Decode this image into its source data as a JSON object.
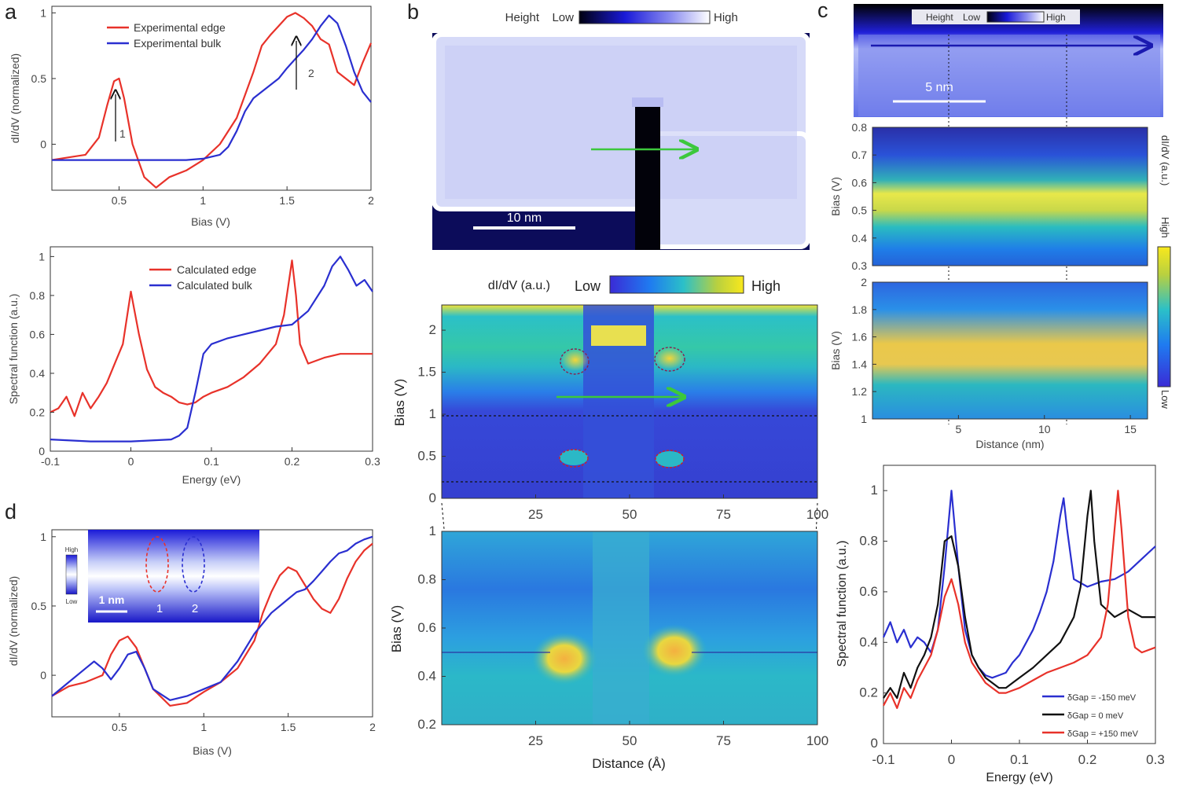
{
  "panels": {
    "a": "a",
    "b": "b",
    "c": "c",
    "d": "d"
  },
  "colors": {
    "edge": "#e8322a",
    "bulk": "#2a2fd0",
    "black": "#111111",
    "arrow": "#3cc83c"
  },
  "chart_data": [
    {
      "id": "a-top",
      "type": "line",
      "xlabel": "Bias (V)",
      "ylabel": "dI/dV (normalized)",
      "xlim": [
        0.1,
        2.0
      ],
      "ylim": [
        -0.35,
        1.05
      ],
      "xticks": [
        "0.5",
        "1",
        "1.5",
        "2"
      ],
      "yticks": [
        "0",
        "0.5",
        "1"
      ],
      "legend": "top-left",
      "annotations": [
        "1",
        "2"
      ],
      "series": [
        {
          "name": "Experimental edge",
          "color": "#e8322a",
          "x": [
            0.1,
            0.2,
            0.3,
            0.38,
            0.43,
            0.47,
            0.5,
            0.53,
            0.58,
            0.65,
            0.72,
            0.8,
            0.9,
            1.0,
            1.1,
            1.2,
            1.3,
            1.35,
            1.4,
            1.45,
            1.5,
            1.55,
            1.6,
            1.65,
            1.7,
            1.75,
            1.8,
            1.85,
            1.9,
            1.95,
            2.0
          ],
          "y": [
            -0.12,
            -0.1,
            -0.08,
            0.05,
            0.3,
            0.48,
            0.5,
            0.35,
            0.0,
            -0.25,
            -0.33,
            -0.25,
            -0.2,
            -0.12,
            0.0,
            0.2,
            0.55,
            0.75,
            0.83,
            0.9,
            0.97,
            1.0,
            0.96,
            0.9,
            0.8,
            0.76,
            0.55,
            0.5,
            0.45,
            0.62,
            0.77
          ]
        },
        {
          "name": "Experimental bulk",
          "color": "#2a2fd0",
          "x": [
            0.1,
            0.3,
            0.5,
            0.7,
            0.9,
            1.0,
            1.1,
            1.15,
            1.2,
            1.25,
            1.3,
            1.35,
            1.4,
            1.45,
            1.5,
            1.55,
            1.6,
            1.65,
            1.7,
            1.75,
            1.8,
            1.85,
            1.9,
            1.95,
            2.0
          ],
          "y": [
            -0.12,
            -0.12,
            -0.12,
            -0.12,
            -0.12,
            -0.11,
            -0.08,
            -0.02,
            0.1,
            0.25,
            0.35,
            0.4,
            0.45,
            0.5,
            0.58,
            0.65,
            0.72,
            0.8,
            0.9,
            0.98,
            0.92,
            0.75,
            0.55,
            0.4,
            0.32
          ]
        }
      ]
    },
    {
      "id": "a-bottom",
      "type": "line",
      "xlabel": "Energy (eV)",
      "ylabel": "Spectral function (a.u.)",
      "xlim": [
        -0.1,
        0.3
      ],
      "ylim": [
        0,
        1.05
      ],
      "xticks": [
        "-0.1",
        "0",
        "0.1",
        "0.2",
        "0.3"
      ],
      "yticks": [
        "0",
        "0.2",
        "0.4",
        "0.6",
        "0.8",
        "1"
      ],
      "legend": "top-left",
      "series": [
        {
          "name": "Calculated edge",
          "color": "#e8322a",
          "x": [
            -0.1,
            -0.09,
            -0.08,
            -0.07,
            -0.06,
            -0.05,
            -0.04,
            -0.03,
            -0.02,
            -0.01,
            0.0,
            0.01,
            0.02,
            0.03,
            0.04,
            0.05,
            0.06,
            0.07,
            0.08,
            0.09,
            0.1,
            0.12,
            0.14,
            0.16,
            0.18,
            0.19,
            0.2,
            0.205,
            0.21,
            0.22,
            0.24,
            0.26,
            0.3
          ],
          "y": [
            0.2,
            0.22,
            0.28,
            0.18,
            0.3,
            0.22,
            0.28,
            0.35,
            0.45,
            0.55,
            0.82,
            0.6,
            0.42,
            0.33,
            0.3,
            0.28,
            0.25,
            0.24,
            0.25,
            0.28,
            0.3,
            0.33,
            0.38,
            0.45,
            0.55,
            0.7,
            0.98,
            0.8,
            0.55,
            0.45,
            0.48,
            0.5,
            0.5
          ]
        },
        {
          "name": "Calculated bulk",
          "color": "#2a2fd0",
          "x": [
            -0.1,
            -0.05,
            0.0,
            0.05,
            0.06,
            0.07,
            0.08,
            0.09,
            0.1,
            0.12,
            0.14,
            0.16,
            0.18,
            0.2,
            0.22,
            0.24,
            0.25,
            0.26,
            0.27,
            0.28,
            0.29,
            0.3
          ],
          "y": [
            0.06,
            0.05,
            0.05,
            0.06,
            0.08,
            0.12,
            0.3,
            0.5,
            0.55,
            0.58,
            0.6,
            0.62,
            0.64,
            0.65,
            0.72,
            0.85,
            0.95,
            1.0,
            0.93,
            0.85,
            0.88,
            0.82
          ]
        }
      ]
    },
    {
      "id": "b-topo",
      "type": "heatmap",
      "colorbar_label": "Height",
      "colorbar_low": "Low",
      "colorbar_high": "High",
      "scalebar": "10 nm"
    },
    {
      "id": "b-map-top",
      "type": "heatmap",
      "ylabel": "Bias (V)",
      "xlim": [
        0,
        100
      ],
      "ylim": [
        0,
        2.3
      ],
      "xticks": [
        "25",
        "50",
        "75",
        "100"
      ],
      "yticks": [
        "0",
        "0.5",
        "1",
        "1.5",
        "2"
      ],
      "colorbar_label": "dI/dV (a.u.)",
      "colorbar_low": "Low",
      "colorbar_high": "High"
    },
    {
      "id": "b-map-bottom",
      "type": "heatmap",
      "xlabel": "Distance (Å)",
      "ylabel": "Bias (V)",
      "xlim": [
        0,
        100
      ],
      "ylim": [
        0.2,
        1.0
      ],
      "xticks": [
        "25",
        "50",
        "75",
        "100"
      ],
      "yticks": [
        "0.2",
        "0.4",
        "0.6",
        "0.8",
        "1"
      ]
    },
    {
      "id": "c-topo",
      "type": "heatmap",
      "colorbar_label": "Height",
      "colorbar_low": "Low",
      "colorbar_high": "High",
      "scalebar": "5 nm"
    },
    {
      "id": "c-map-top",
      "type": "heatmap",
      "ylabel": "Bias (V)",
      "xlim": [
        0,
        16
      ],
      "ylim": [
        0.3,
        0.8
      ],
      "yticks": [
        "0.3",
        "0.4",
        "0.5",
        "0.6",
        "0.7",
        "0.8"
      ],
      "colorbar_label": "dI/dV (a.u.)",
      "colorbar_high": "High",
      "colorbar_low": "Low"
    },
    {
      "id": "c-map-bottom",
      "type": "heatmap",
      "xlabel": "Distance (nm)",
      "ylabel": "Bias (V)",
      "xlim": [
        0,
        16
      ],
      "ylim": [
        1.0,
        2.0
      ],
      "xticks": [
        "5",
        "10",
        "15"
      ],
      "yticks": [
        "1",
        "1.2",
        "1.4",
        "1.6",
        "1.8",
        "2"
      ]
    },
    {
      "id": "c-spectral",
      "type": "line",
      "xlabel": "Energy (eV)",
      "ylabel": "Spectral function (a.u.)",
      "xlim": [
        -0.1,
        0.3
      ],
      "ylim": [
        0,
        1.1
      ],
      "xticks": [
        "-0.1",
        "0",
        "0.1",
        "0.2",
        "0.3"
      ],
      "yticks": [
        "0",
        "0.2",
        "0.4",
        "0.6",
        "0.8",
        "1"
      ],
      "legend": "bottom-right",
      "series": [
        {
          "name": "δGap = -150 meV",
          "color": "#2a2fd0",
          "x": [
            -0.1,
            -0.09,
            -0.08,
            -0.07,
            -0.06,
            -0.05,
            -0.04,
            -0.03,
            -0.02,
            -0.01,
            0.0,
            0.01,
            0.02,
            0.03,
            0.04,
            0.05,
            0.06,
            0.07,
            0.08,
            0.09,
            0.1,
            0.11,
            0.12,
            0.13,
            0.14,
            0.15,
            0.16,
            0.165,
            0.17,
            0.18,
            0.2,
            0.22,
            0.24,
            0.26,
            0.28,
            0.3
          ],
          "y": [
            0.42,
            0.48,
            0.4,
            0.45,
            0.38,
            0.42,
            0.4,
            0.36,
            0.45,
            0.7,
            1.0,
            0.7,
            0.45,
            0.35,
            0.3,
            0.27,
            0.26,
            0.27,
            0.28,
            0.32,
            0.35,
            0.4,
            0.45,
            0.52,
            0.6,
            0.72,
            0.9,
            0.97,
            0.85,
            0.65,
            0.62,
            0.64,
            0.65,
            0.68,
            0.73,
            0.78
          ]
        },
        {
          "name": "δGap = 0 meV",
          "color": "#111111",
          "x": [
            -0.1,
            -0.09,
            -0.08,
            -0.07,
            -0.06,
            -0.05,
            -0.04,
            -0.03,
            -0.02,
            -0.01,
            0.0,
            0.01,
            0.02,
            0.03,
            0.04,
            0.05,
            0.06,
            0.07,
            0.08,
            0.09,
            0.1,
            0.12,
            0.14,
            0.16,
            0.18,
            0.19,
            0.2,
            0.205,
            0.21,
            0.22,
            0.24,
            0.26,
            0.28,
            0.3
          ],
          "y": [
            0.18,
            0.22,
            0.18,
            0.28,
            0.22,
            0.3,
            0.35,
            0.42,
            0.55,
            0.8,
            0.82,
            0.7,
            0.5,
            0.35,
            0.3,
            0.26,
            0.24,
            0.22,
            0.22,
            0.24,
            0.26,
            0.3,
            0.35,
            0.4,
            0.5,
            0.62,
            0.9,
            1.0,
            0.8,
            0.55,
            0.5,
            0.53,
            0.5,
            0.5
          ]
        },
        {
          "name": "δGap = +150 meV",
          "color": "#e8322a",
          "x": [
            -0.1,
            -0.09,
            -0.08,
            -0.07,
            -0.06,
            -0.05,
            -0.04,
            -0.03,
            -0.02,
            -0.01,
            0.0,
            0.01,
            0.02,
            0.03,
            0.04,
            0.05,
            0.06,
            0.07,
            0.08,
            0.09,
            0.1,
            0.12,
            0.14,
            0.16,
            0.18,
            0.2,
            0.22,
            0.23,
            0.24,
            0.245,
            0.25,
            0.26,
            0.27,
            0.28,
            0.3
          ],
          "y": [
            0.15,
            0.2,
            0.14,
            0.22,
            0.18,
            0.25,
            0.3,
            0.35,
            0.45,
            0.58,
            0.65,
            0.55,
            0.4,
            0.32,
            0.28,
            0.24,
            0.22,
            0.2,
            0.2,
            0.21,
            0.22,
            0.25,
            0.28,
            0.3,
            0.32,
            0.35,
            0.42,
            0.55,
            0.85,
            1.0,
            0.85,
            0.5,
            0.38,
            0.36,
            0.38
          ]
        }
      ]
    },
    {
      "id": "d",
      "type": "line",
      "xlabel": "Bias (V)",
      "ylabel": "dI/dV (normalized)",
      "xlim": [
        0.1,
        2.0
      ],
      "ylim": [
        -0.3,
        1.05
      ],
      "xticks": [
        "0.5",
        "1",
        "1.5",
        "2"
      ],
      "yticks": [
        "0",
        "0.5",
        "1"
      ],
      "inset": {
        "high": "High",
        "low": "Low",
        "scalebar": "1 nm",
        "marker1": "1",
        "marker2": "2"
      },
      "series": [
        {
          "name": "",
          "color": "#e8322a",
          "x": [
            0.1,
            0.2,
            0.3,
            0.4,
            0.45,
            0.5,
            0.55,
            0.6,
            0.65,
            0.7,
            0.8,
            0.9,
            1.0,
            1.1,
            1.2,
            1.3,
            1.35,
            1.4,
            1.45,
            1.5,
            1.55,
            1.6,
            1.65,
            1.7,
            1.75,
            1.8,
            1.85,
            1.9,
            1.95,
            2.0
          ],
          "y": [
            -0.15,
            -0.08,
            -0.05,
            0.0,
            0.15,
            0.25,
            0.28,
            0.2,
            0.05,
            -0.1,
            -0.22,
            -0.2,
            -0.12,
            -0.05,
            0.05,
            0.25,
            0.45,
            0.6,
            0.72,
            0.78,
            0.75,
            0.65,
            0.55,
            0.48,
            0.45,
            0.55,
            0.7,
            0.82,
            0.9,
            0.95
          ]
        },
        {
          "name": "",
          "color": "#2a2fd0",
          "x": [
            0.1,
            0.2,
            0.3,
            0.35,
            0.4,
            0.45,
            0.5,
            0.55,
            0.6,
            0.65,
            0.7,
            0.8,
            0.9,
            1.0,
            1.1,
            1.2,
            1.3,
            1.4,
            1.45,
            1.5,
            1.55,
            1.6,
            1.65,
            1.7,
            1.75,
            1.8,
            1.85,
            1.9,
            1.95,
            2.0
          ],
          "y": [
            -0.15,
            -0.05,
            0.05,
            0.1,
            0.05,
            -0.03,
            0.05,
            0.15,
            0.17,
            0.05,
            -0.1,
            -0.18,
            -0.15,
            -0.1,
            -0.05,
            0.1,
            0.3,
            0.45,
            0.5,
            0.55,
            0.6,
            0.62,
            0.68,
            0.75,
            0.82,
            0.88,
            0.9,
            0.95,
            0.98,
            1.0
          ]
        }
      ]
    }
  ]
}
